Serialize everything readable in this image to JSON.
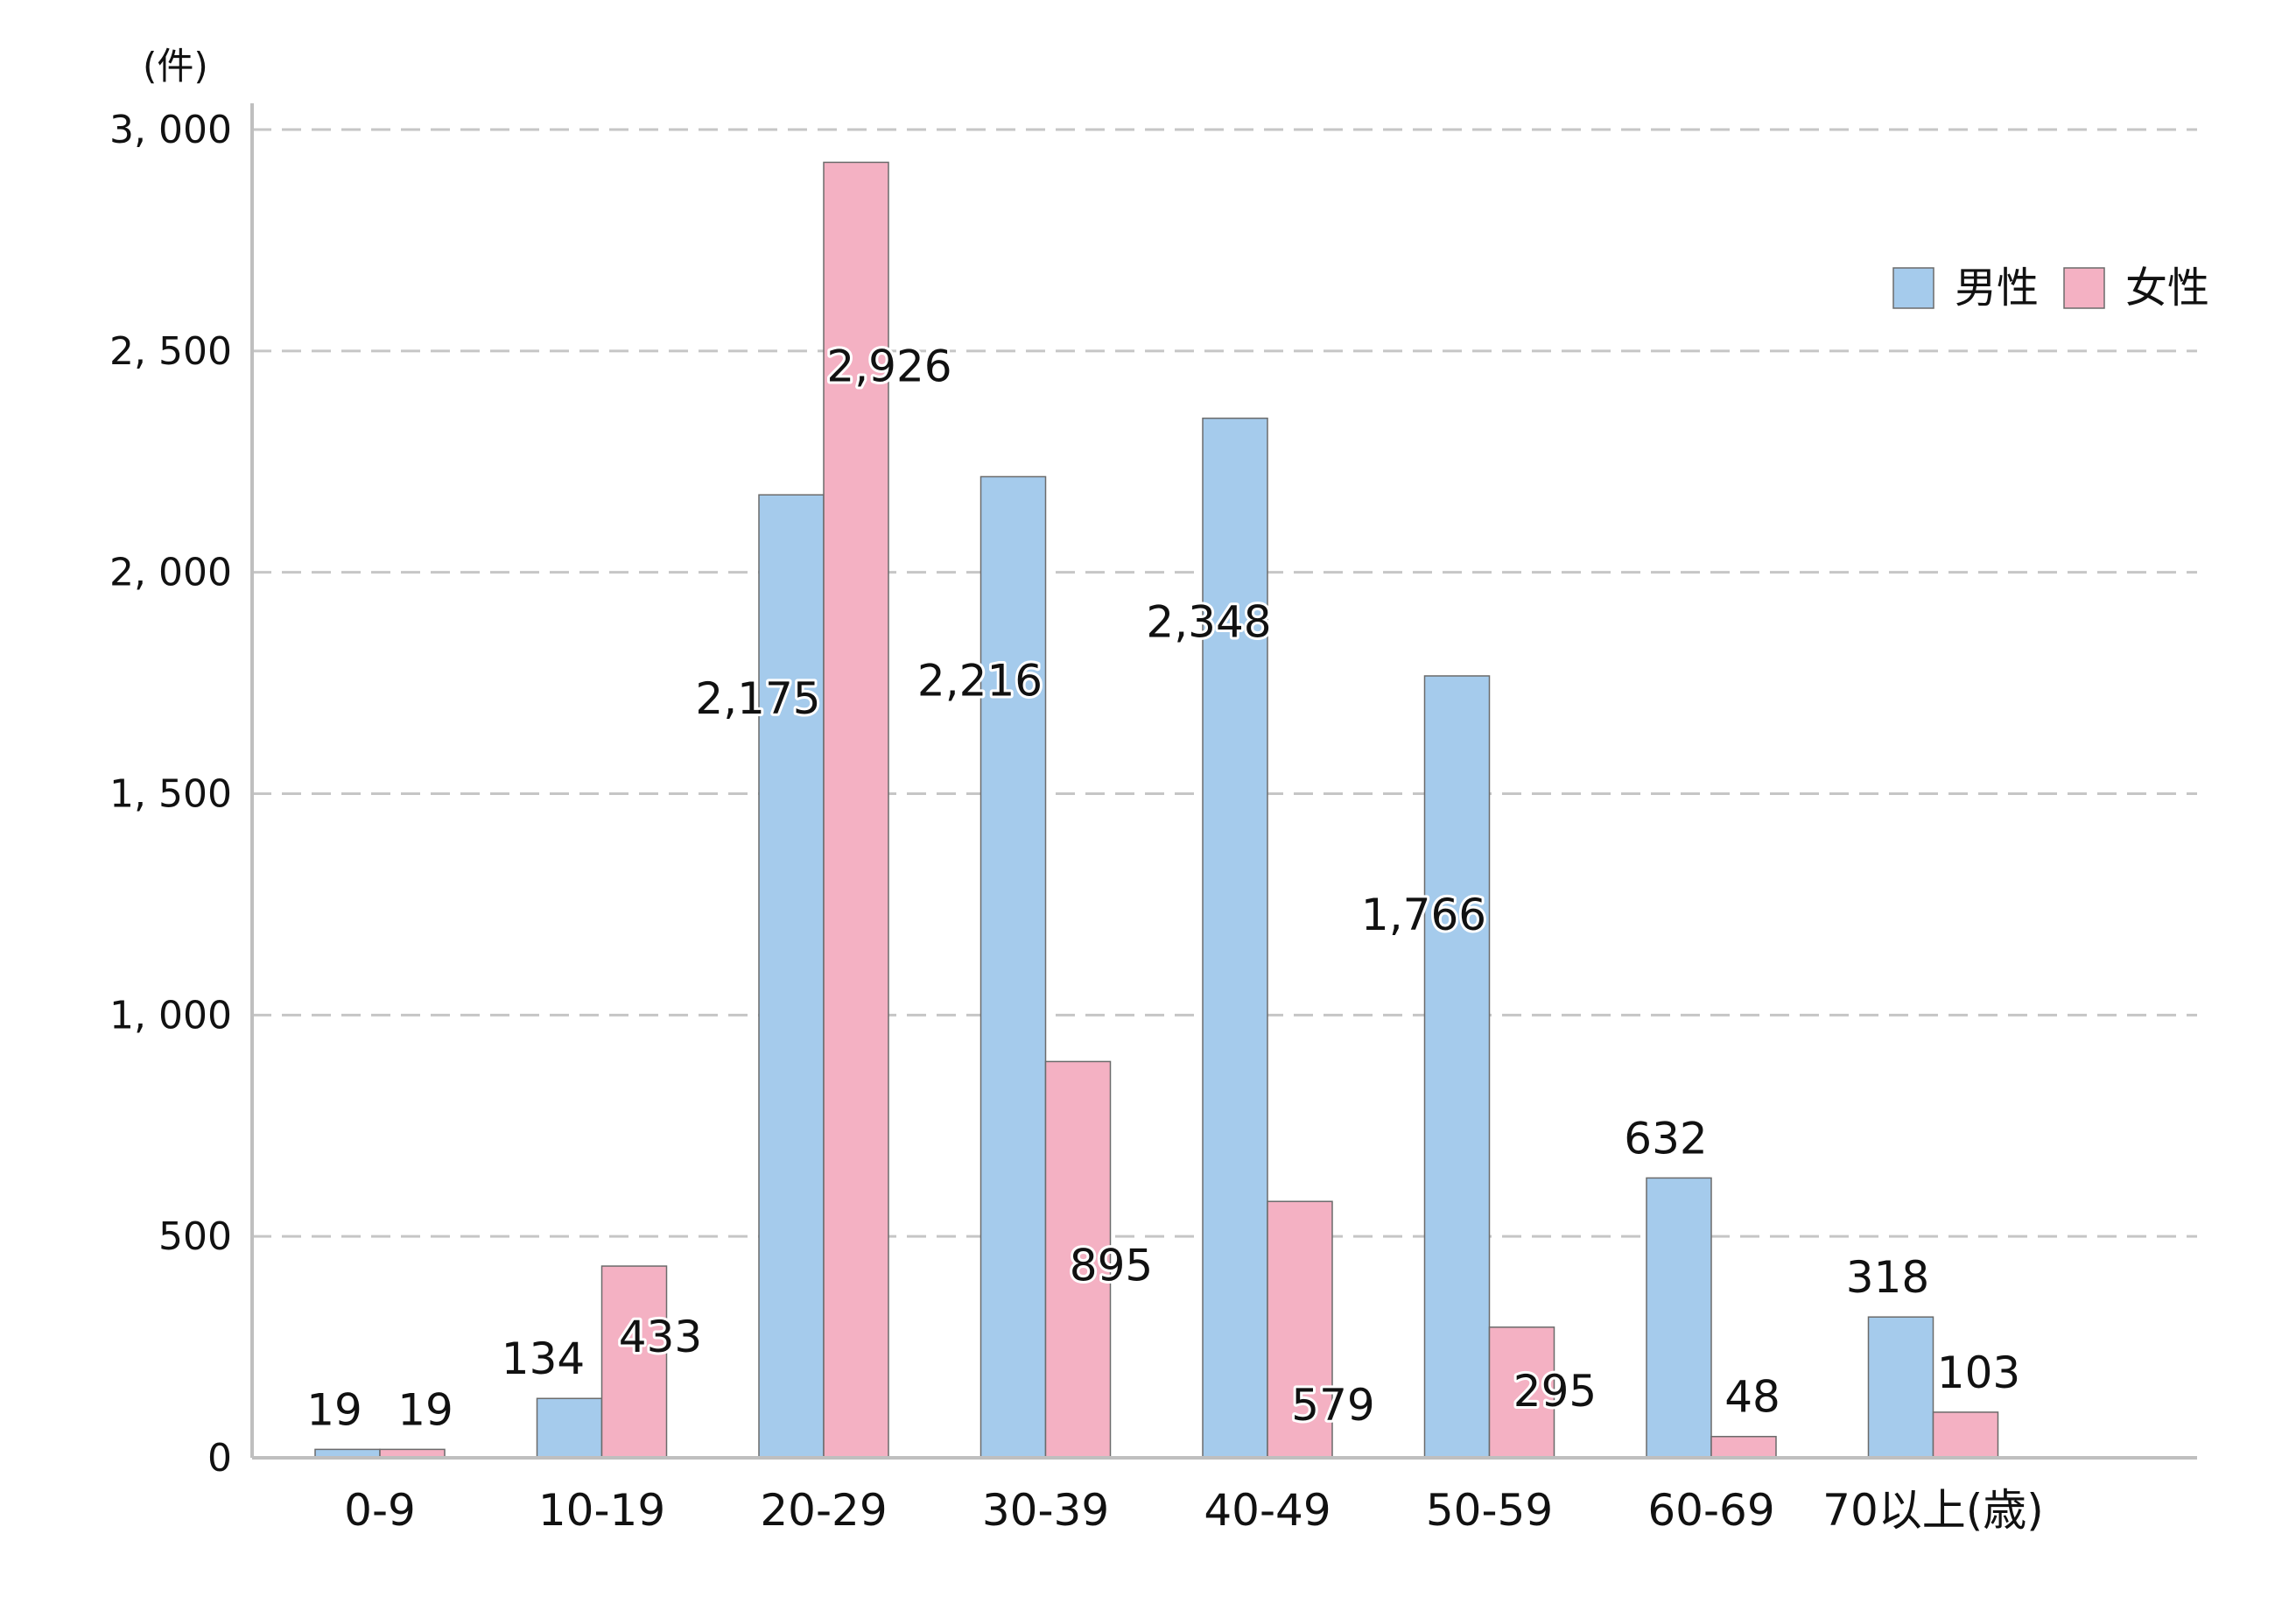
{
  "chart_data": {
    "type": "bar",
    "y_unit_label": "(件)",
    "categories": [
      "0-9",
      "10-19",
      "20-29",
      "30-39",
      "40-49",
      "50-59",
      "60-69",
      "70以上(歳)"
    ],
    "series": [
      {
        "name": "男性",
        "color": "#A5CBEC",
        "values": [
          19,
          134,
          2175,
          2216,
          2348,
          1766,
          632,
          318
        ],
        "labels": [
          "19",
          "134",
          "2,175",
          "2,216",
          "2,348",
          "1,766",
          "632",
          "318"
        ]
      },
      {
        "name": "女性",
        "color": "#F4B1C3",
        "values": [
          19,
          433,
          2926,
          895,
          579,
          295,
          48,
          103
        ],
        "labels": [
          "19",
          "433",
          "2,926",
          "895",
          "579",
          "295",
          "48",
          "103"
        ]
      }
    ],
    "ylim": [
      0,
      3000
    ],
    "yticks": [
      0,
      500,
      1000,
      1500,
      2000,
      2500,
      3000
    ],
    "ytick_labels": [
      "0",
      "500",
      "1, 000",
      "1, 500",
      "2, 000",
      "2, 500",
      "3, 000"
    ],
    "grid": "horizontal-dashed",
    "legend": "top-right"
  }
}
